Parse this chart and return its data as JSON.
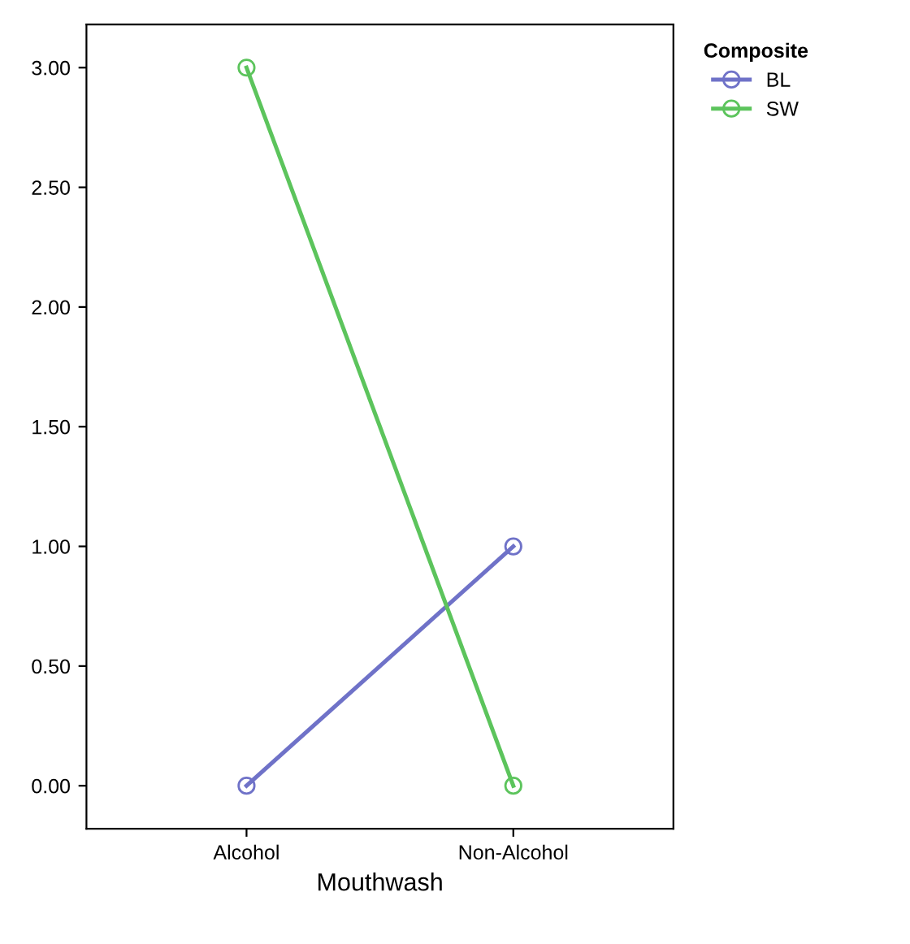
{
  "chart_data": {
    "type": "line",
    "xlabel": "Mouthwash",
    "legend_title": "Composite",
    "categories": [
      "Alcohol",
      "Non-Alcohol"
    ],
    "series": [
      {
        "name": "BL",
        "color": "#6f72c8",
        "values": [
          0,
          1
        ]
      },
      {
        "name": "SW",
        "color": "#5cc45c",
        "values": [
          3,
          0
        ]
      }
    ],
    "ylim": [
      -0.18,
      3.18
    ],
    "yticks": [
      {
        "value": 0,
        "label": "0.00"
      },
      {
        "value": 0.5,
        "label": "0.50"
      },
      {
        "value": 1,
        "label": "1.00"
      },
      {
        "value": 1.5,
        "label": "1.50"
      },
      {
        "value": 2,
        "label": "2.00"
      },
      {
        "value": 2.5,
        "label": "2.50"
      },
      {
        "value": 3,
        "label": "3.00"
      }
    ],
    "marker": "circle",
    "line_style": "solid",
    "grid": false,
    "legend": "top right"
  }
}
